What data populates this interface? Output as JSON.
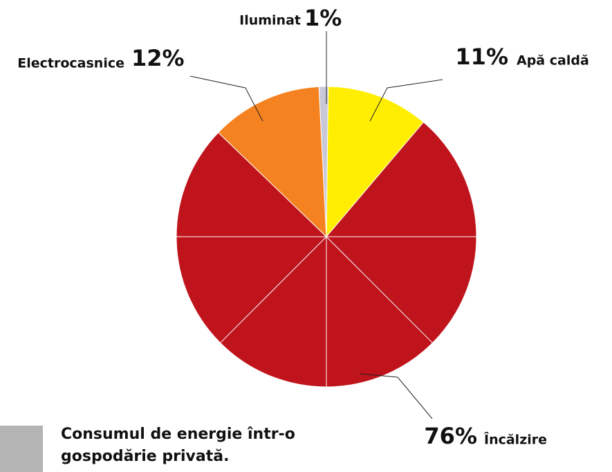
{
  "chart_data": {
    "type": "pie",
    "categories": [
      "Iluminat",
      "Apă caldă",
      "Încălzire",
      "Electrocasnice"
    ],
    "values": [
      1,
      11,
      76,
      12
    ],
    "value_labels": [
      "1%",
      "11%",
      "76%",
      "12%"
    ],
    "colors": [
      "#c8c8d8",
      "#ffee00",
      "#c0141c",
      "#f58220"
    ],
    "caption": "Consumul de energie într-o gospodărie privată."
  }
}
